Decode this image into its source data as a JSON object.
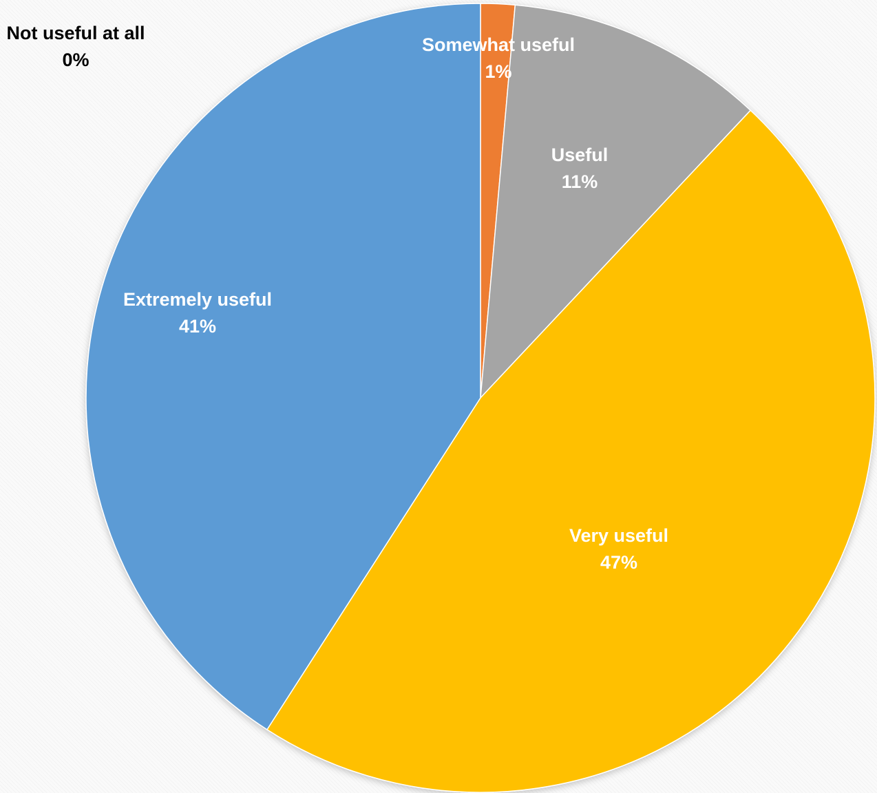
{
  "chart_data": {
    "type": "pie",
    "title": "",
    "start_angle_deg": 0,
    "direction": "clockwise",
    "legend": "none",
    "slices": [
      {
        "name": "Not useful at all",
        "value": 0,
        "percent_label": "0%",
        "color": "#4472C4",
        "label_color": "#000000"
      },
      {
        "name": "Somewhat useful",
        "value": 1.4,
        "percent_label": "1%",
        "color": "#ED7D31",
        "label_color": "#FFFFFF"
      },
      {
        "name": "Useful",
        "value": 10.6,
        "percent_label": "11%",
        "color": "#A5A5A5",
        "label_color": "#FFFFFF"
      },
      {
        "name": "Very useful",
        "value": 47.1,
        "percent_label": "47%",
        "color": "#FFC000",
        "label_color": "#FFFFFF"
      },
      {
        "name": "Extremely useful",
        "value": 40.9,
        "percent_label": "41%",
        "color": "#5B9BD5",
        "label_color": "#FFFFFF"
      }
    ]
  }
}
